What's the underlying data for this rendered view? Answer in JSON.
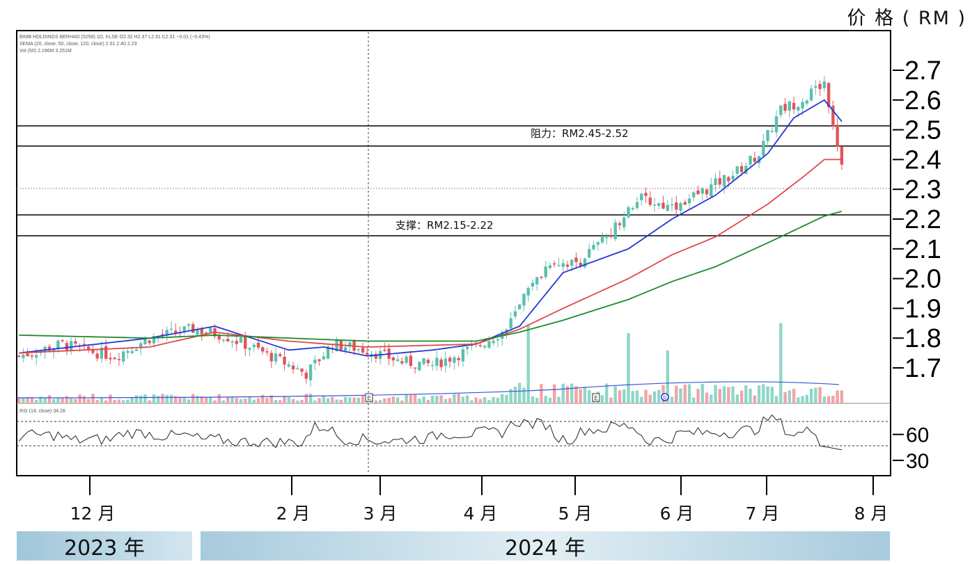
{
  "header": {
    "unit_label": "价 格 ( RM )"
  },
  "legend_lines": {
    "line1": "BIMB HOLDINGS BERHAD (5258) 1D, KLSE  O2.32 H2.37 L2.31 C2.31 −0.01 (−0.43%)",
    "line2": "SEMA (20, close, 50, close, 120, close)  2.51  2.40  2.23",
    "line3": "Vol (50)  2.196M  3.251M",
    "rsi": "RSI (14, close)  34.28"
  },
  "annotations": {
    "resistance": "阻力：RM2.45-2.52",
    "support": "支撑：RM2.15-2.22"
  },
  "markers": [
    "E",
    "E",
    "D"
  ],
  "months": [
    "12 月",
    "2 月",
    "3 月",
    "4 月",
    "5 月",
    "6 月",
    "7 月",
    "8 月"
  ],
  "years": [
    "2023 年",
    "2024 年"
  ],
  "colors": {
    "up": "#5bbfae",
    "down": "#e0555b",
    "ma20": "#2436d6",
    "ma50": "#e0474e",
    "ma120": "#1e8a2a",
    "rsi": "#222222"
  },
  "chart_data": {
    "type": "candlestick",
    "title": "BIMB HOLDINGS BERHAD (5258) 1D",
    "ylabel": "价格 (RM)",
    "ylim": [
      1.6,
      2.82
    ],
    "y_ticks": [
      1.7,
      1.8,
      1.9,
      2.0,
      2.1,
      2.2,
      2.3,
      2.4,
      2.5,
      2.6,
      2.7
    ],
    "y_tick_labels": [
      "1.7",
      "1.8",
      "1.9",
      "2.0",
      "2.1",
      "2.2",
      "2.3",
      "2.4",
      "2.5",
      "2.6",
      "2.7"
    ],
    "resistance_zone": [
      2.45,
      2.52
    ],
    "support_zone": [
      2.15,
      2.22
    ],
    "current_price_line": 2.31,
    "ma_periods": [
      20,
      50,
      120
    ],
    "close_path": {
      "x": [
        0,
        10,
        15,
        22,
        30,
        40,
        47,
        55,
        62,
        66,
        72,
        80,
        88,
        95,
        100,
        105,
        112,
        116,
        122,
        128,
        135,
        142,
        150,
        158,
        165,
        170,
        175,
        180,
        185,
        190
      ],
      "y": [
        1.74,
        1.78,
        1.76,
        1.74,
        1.8,
        1.83,
        1.81,
        1.76,
        1.71,
        1.68,
        1.78,
        1.76,
        1.72,
        1.71,
        1.74,
        1.77,
        1.83,
        1.93,
        2.06,
        2.05,
        2.14,
        2.27,
        2.24,
        2.3,
        2.36,
        2.42,
        2.57,
        2.6,
        2.66,
        2.32
      ]
    },
    "ma_series": [
      {
        "name": "SEMA 20",
        "latest": 2.51,
        "x": [
          0,
          30,
          45,
          62,
          70,
          80,
          95,
          105,
          115,
          125,
          140,
          150,
          160,
          172,
          178,
          185,
          190
        ],
        "y": [
          1.75,
          1.8,
          1.84,
          1.76,
          1.77,
          1.74,
          1.76,
          1.78,
          1.84,
          2.02,
          2.1,
          2.2,
          2.28,
          2.42,
          2.54,
          2.6,
          2.51
        ]
      },
      {
        "name": "SEMA 50",
        "latest": 2.4,
        "x": [
          0,
          30,
          45,
          62,
          80,
          105,
          115,
          125,
          140,
          150,
          160,
          172,
          180,
          185,
          190
        ],
        "y": [
          1.75,
          1.77,
          1.82,
          1.79,
          1.77,
          1.78,
          1.83,
          1.9,
          2.0,
          2.08,
          2.14,
          2.25,
          2.34,
          2.4,
          2.4
        ]
      },
      {
        "name": "SEMA 120",
        "latest": 2.23,
        "x": [
          0,
          30,
          45,
          62,
          80,
          105,
          115,
          125,
          140,
          150,
          160,
          172,
          185,
          190
        ],
        "y": [
          1.81,
          1.8,
          1.81,
          1.8,
          1.79,
          1.79,
          1.82,
          1.86,
          1.93,
          1.99,
          2.04,
          2.12,
          2.21,
          2.23
        ]
      }
    ],
    "volume": {
      "avg_latest_m": 3.251,
      "latest_m": 2.196
    },
    "rsi": {
      "period": 14,
      "latest": 34.28,
      "levels": [
        70,
        30
      ],
      "ylim": [
        20,
        80
      ],
      "y_tick_labels": [
        "60",
        "30"
      ]
    }
  }
}
